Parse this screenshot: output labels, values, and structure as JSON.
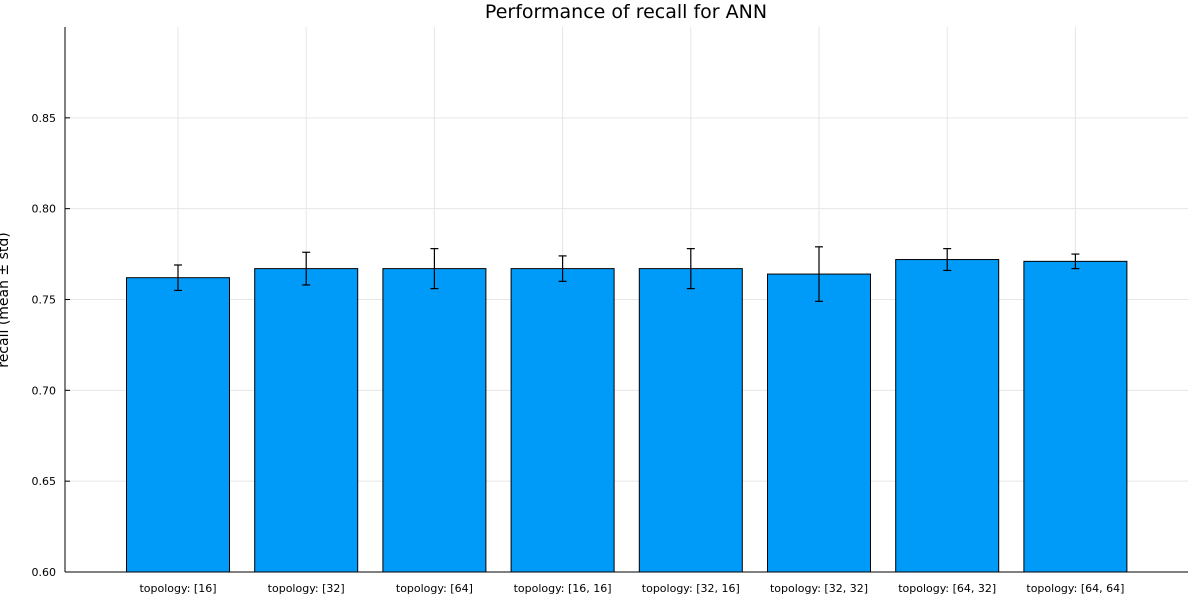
{
  "chart_data": {
    "type": "bar",
    "title": "Performance of recall for ANN",
    "ylabel": "recall (mean ± std)",
    "xlabel": "",
    "categories": [
      "topology: [16]",
      "topology: [32]",
      "topology: [64]",
      "topology: [16, 16]",
      "topology: [32, 16]",
      "topology: [32, 32]",
      "topology: [64, 32]",
      "topology: [64, 64]"
    ],
    "values": [
      0.762,
      0.767,
      0.767,
      0.767,
      0.767,
      0.764,
      0.772,
      0.771
    ],
    "errors": [
      0.007,
      0.009,
      0.011,
      0.007,
      0.011,
      0.015,
      0.006,
      0.004
    ],
    "ylim": [
      0.6,
      0.9
    ],
    "yticks": [
      "0.60",
      "0.65",
      "0.70",
      "0.75",
      "0.80",
      "0.85"
    ],
    "grid": true,
    "legend": "none",
    "colors": {
      "bar": "#009af9",
      "bar_edge": "#000000",
      "grid": "#e6e6e6",
      "error_bar": "#000000"
    }
  }
}
